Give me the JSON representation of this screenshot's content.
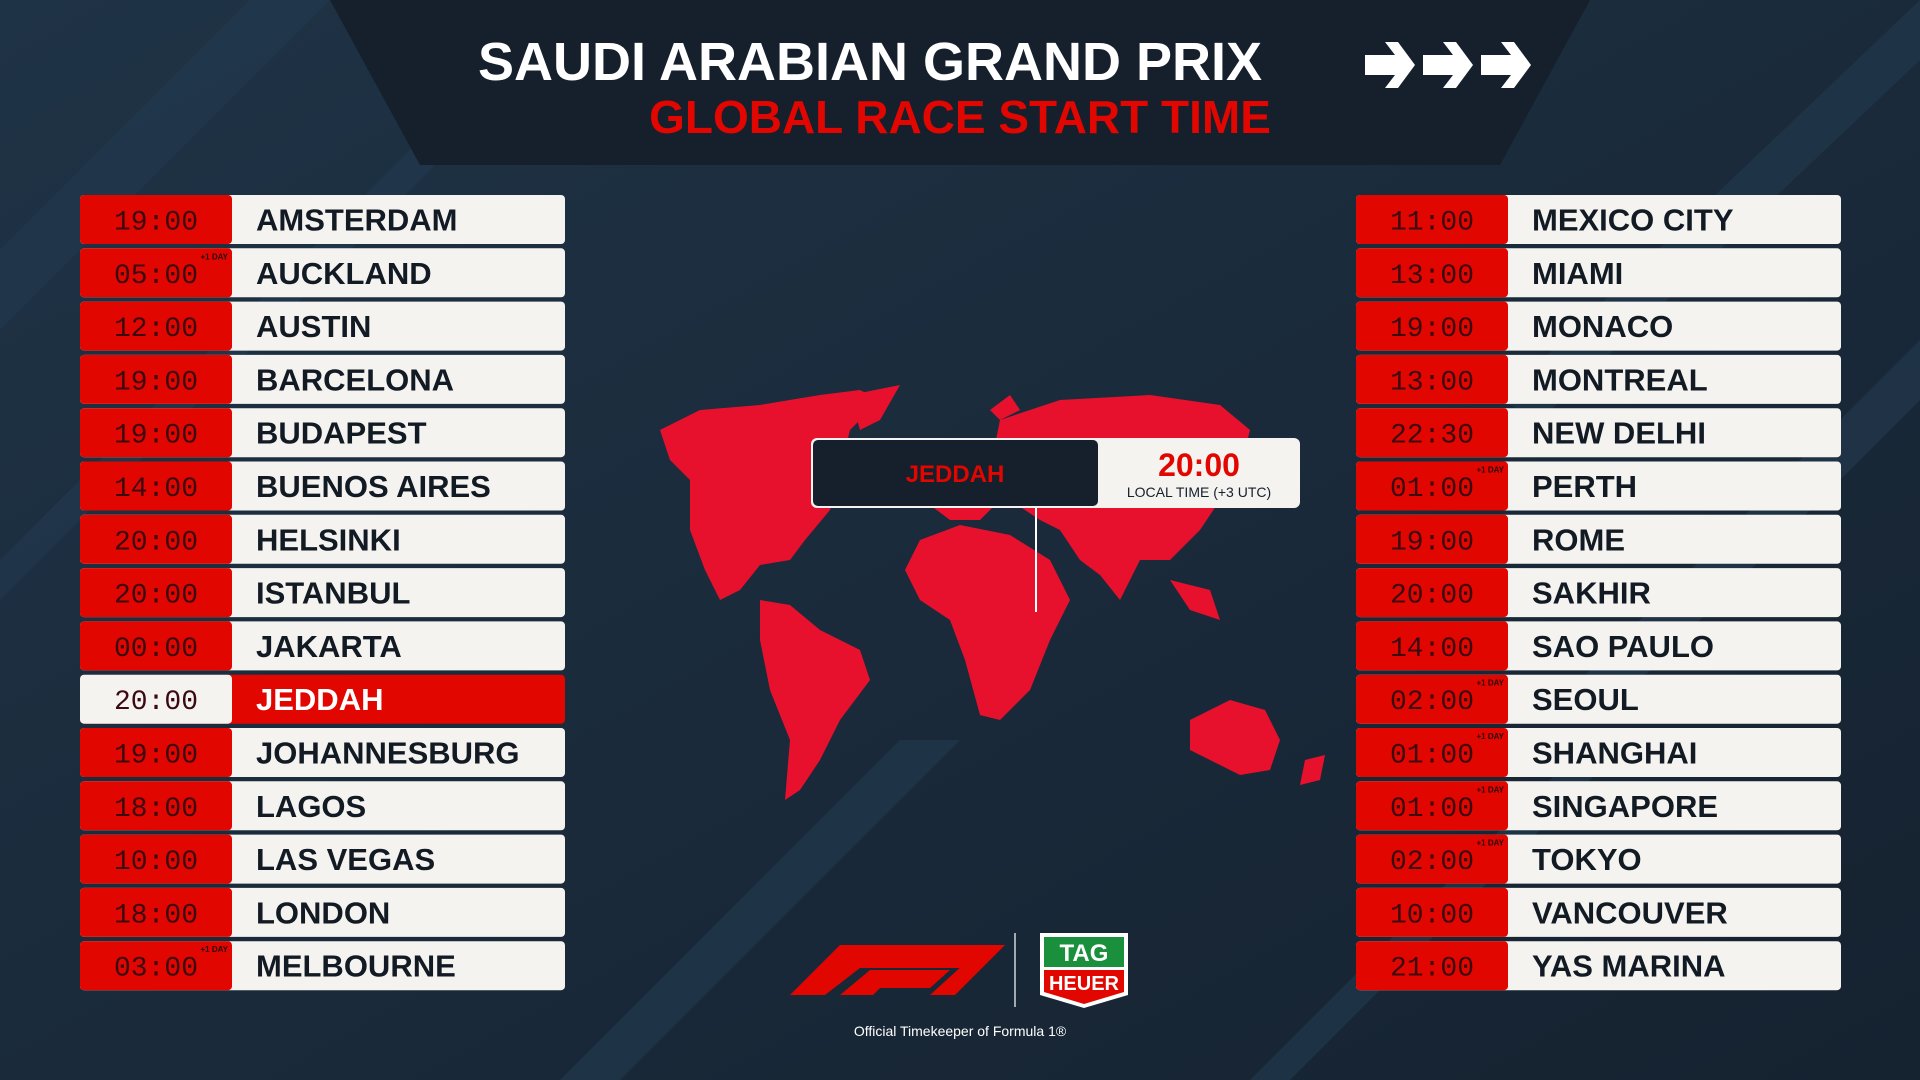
{
  "header": {
    "title": "SAUDI ARABIAN GRAND PRIX",
    "subtitle": "GLOBAL RACE START TIME"
  },
  "left_table": {
    "rows": [
      {
        "time": "19:00",
        "city": "AMSTERDAM"
      },
      {
        "time": "05:00",
        "city": "AUCKLAND",
        "badge": "+1 DAY"
      },
      {
        "time": "12:00",
        "city": "AUSTIN"
      },
      {
        "time": "19:00",
        "city": "BARCELONA"
      },
      {
        "time": "19:00",
        "city": "BUDAPEST"
      },
      {
        "time": "14:00",
        "city": "BUENOS AIRES"
      },
      {
        "time": "20:00",
        "city": "HELSINKI"
      },
      {
        "time": "20:00",
        "city": "ISTANBUL"
      },
      {
        "time": "00:00",
        "city": "JAKARTA"
      },
      {
        "time": "20:00",
        "city": "JEDDAH",
        "highlight": true
      },
      {
        "time": "19:00",
        "city": "JOHANNESBURG"
      },
      {
        "time": "18:00",
        "city": "LAGOS"
      },
      {
        "time": "10:00",
        "city": "LAS VEGAS"
      },
      {
        "time": "18:00",
        "city": "LONDON"
      },
      {
        "time": "03:00",
        "city": "MELBOURNE",
        "badge": "+1 DAY"
      }
    ]
  },
  "right_table": {
    "rows": [
      {
        "time": "11:00",
        "city": "MEXICO CITY"
      },
      {
        "time": "13:00",
        "city": "MIAMI"
      },
      {
        "time": "19:00",
        "city": "MONACO"
      },
      {
        "time": "13:00",
        "city": "MONTREAL"
      },
      {
        "time": "22:30",
        "city": "NEW DELHI"
      },
      {
        "time": "01:00",
        "city": "PERTH",
        "badge": "+1 DAY"
      },
      {
        "time": "19:00",
        "city": "ROME"
      },
      {
        "time": "20:00",
        "city": "SAKHIR"
      },
      {
        "time": "14:00",
        "city": "SAO PAULO"
      },
      {
        "time": "02:00",
        "city": "SEOUL",
        "badge": "+1 DAY"
      },
      {
        "time": "01:00",
        "city": "SHANGHAI",
        "badge": "+1 DAY"
      },
      {
        "time": "01:00",
        "city": "SINGAPORE",
        "badge": "+1 DAY"
      },
      {
        "time": "02:00",
        "city": "TOKYO",
        "badge": "+1 DAY"
      },
      {
        "time": "10:00",
        "city": "VANCOUVER"
      },
      {
        "time": "21:00",
        "city": "YAS MARINA"
      }
    ]
  },
  "map_callout": {
    "city": "JEDDAH",
    "time": "20:00",
    "note": "LOCAL TIME (+3 UTC)"
  },
  "footer": {
    "tag_top": "TAG",
    "tag_bottom": "HEUER",
    "caption": "Official Timekeeper of Formula 1®"
  }
}
